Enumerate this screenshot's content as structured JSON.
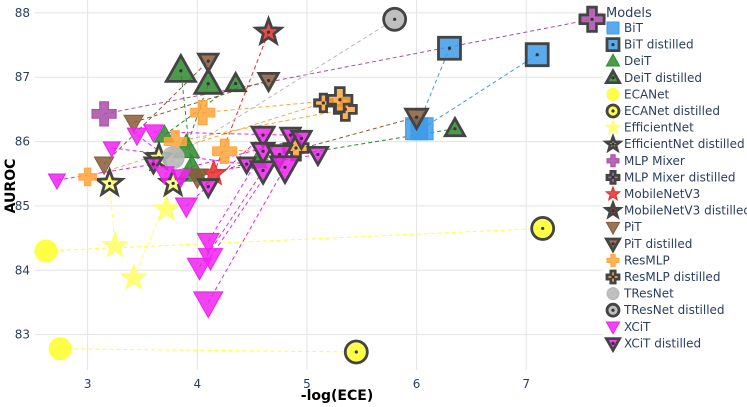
{
  "chart_data": {
    "type": "scatter",
    "xlabel": "-log(ECE)",
    "ylabel": "AUROC",
    "xlim": [
      2.52,
      7.7
    ],
    "ylim": [
      82.45,
      88.2
    ],
    "x_ticks": [
      3,
      4,
      5,
      6,
      7
    ],
    "y_ticks": [
      83,
      84,
      85,
      86,
      87,
      88
    ],
    "grid": true,
    "legend": {
      "title": "Models",
      "position": "right"
    },
    "models": [
      {
        "name": "BiT",
        "color": "#3d9be9",
        "shape": "square"
      },
      {
        "name": "DeiT",
        "color": "#2d8a2d",
        "shape": "triangle-up"
      },
      {
        "name": "ECANet",
        "color": "#ffff33",
        "shape": "circle"
      },
      {
        "name": "EfficientNet",
        "color": "#ffff66",
        "shape": "star"
      },
      {
        "name": "MLP Mixer",
        "color": "#a84ca8",
        "shape": "cross"
      },
      {
        "name": "MobileNetV3",
        "color": "#e82c2c",
        "shape": "star"
      },
      {
        "name": "PiT",
        "color": "#8a5a3a",
        "shape": "triangle-down"
      },
      {
        "name": "ResMLP",
        "color": "#ffa53a",
        "shape": "cross"
      },
      {
        "name": "TResNet",
        "color": "#b8b8b8",
        "shape": "circle"
      },
      {
        "name": "XCiT",
        "color": "#ee22ee",
        "shape": "triangle-down"
      }
    ],
    "legend_entries": [
      {
        "label": "BiT",
        "model": "BiT",
        "distilled": false
      },
      {
        "label": "BiT distilled",
        "model": "BiT",
        "distilled": true
      },
      {
        "label": "DeiT",
        "model": "DeiT",
        "distilled": false
      },
      {
        "label": "DeiT distilled",
        "model": "DeiT",
        "distilled": true
      },
      {
        "label": "ECANet",
        "model": "ECANet",
        "distilled": false
      },
      {
        "label": "ECANet distilled",
        "model": "ECANet",
        "distilled": true
      },
      {
        "label": "EfficientNet",
        "model": "EfficientNet",
        "distilled": false
      },
      {
        "label": "EfficientNet distilled",
        "model": "EfficientNet",
        "distilled": true
      },
      {
        "label": "MLP Mixer",
        "model": "MLP Mixer",
        "distilled": false
      },
      {
        "label": "MLP Mixer distilled",
        "model": "MLP Mixer",
        "distilled": true
      },
      {
        "label": "MobileNetV3",
        "model": "MobileNetV3",
        "distilled": false
      },
      {
        "label": "MobileNetV3 distilled",
        "model": "MobileNetV3",
        "distilled": true
      },
      {
        "label": "PiT",
        "model": "PiT",
        "distilled": false
      },
      {
        "label": "PiT distilled",
        "model": "PiT",
        "distilled": true
      },
      {
        "label": "ResMLP",
        "model": "ResMLP",
        "distilled": false
      },
      {
        "label": "ResMLP distilled",
        "model": "ResMLP",
        "distilled": true
      },
      {
        "label": "TResNet",
        "model": "TResNet",
        "distilled": false
      },
      {
        "label": "TResNet distilled",
        "model": "TResNet",
        "distilled": true
      },
      {
        "label": "XCiT",
        "model": "XCiT",
        "distilled": false
      },
      {
        "label": "XCiT distilled",
        "model": "XCiT",
        "distilled": true
      }
    ],
    "pairs": [
      {
        "model": "BiT",
        "size": 1,
        "plain": [
          6.0,
          86.2
        ],
        "distilled": [
          6.3,
          87.45
        ]
      },
      {
        "model": "BiT",
        "size": 1,
        "plain": [
          6.05,
          86.2
        ],
        "distilled": [
          7.1,
          87.35
        ]
      },
      {
        "model": "DeiT",
        "size": 0.8,
        "plain": [
          3.7,
          86.1
        ],
        "distilled": [
          4.35,
          86.9
        ]
      },
      {
        "model": "DeiT",
        "size": 0.8,
        "plain": [
          4.55,
          85.7
        ],
        "distilled": [
          6.35,
          86.2
        ]
      },
      {
        "model": "DeiT",
        "size": 1.2,
        "plain": [
          3.95,
          85.55
        ],
        "distilled": [
          3.85,
          87.1
        ]
      },
      {
        "model": "DeiT",
        "size": 1.1,
        "plain": [
          3.9,
          85.9
        ],
        "distilled": [
          4.1,
          86.9
        ]
      },
      {
        "model": "ECANet",
        "size": 1,
        "plain": [
          2.62,
          84.3
        ],
        "distilled": [
          7.15,
          84.65
        ]
      },
      {
        "model": "ECANet",
        "size": 1,
        "plain": [
          2.75,
          82.78
        ],
        "distilled": [
          5.45,
          82.73
        ]
      },
      {
        "model": "EfficientNet",
        "size": 1,
        "plain": [
          3.25,
          84.38
        ],
        "distilled": [
          3.2,
          85.35
        ]
      },
      {
        "model": "EfficientNet",
        "size": 1,
        "plain": [
          3.42,
          83.88
        ],
        "distilled": [
          3.78,
          85.35
        ]
      },
      {
        "model": "EfficientNet",
        "size": 1,
        "plain": [
          3.72,
          84.95
        ],
        "distilled": [
          3.65,
          85.75
        ]
      },
      {
        "model": "MLP Mixer",
        "size": 1.1,
        "plain": [
          3.15,
          86.43
        ],
        "distilled": [
          7.6,
          87.9
        ]
      },
      {
        "model": "MobileNetV3",
        "size": 1,
        "plain": [
          4.15,
          85.5
        ],
        "distilled": [
          4.65,
          87.7
        ]
      },
      {
        "model": "PiT",
        "size": 0.8,
        "plain": [
          3.42,
          86.3
        ],
        "distilled": [
          4.65,
          86.95
        ]
      },
      {
        "model": "PiT",
        "size": 0.8,
        "plain": [
          3.15,
          85.65
        ],
        "distilled": [
          4.1,
          87.25
        ]
      },
      {
        "model": "PiT",
        "size": 0.9,
        "plain": [
          4.0,
          85.45
        ],
        "distilled": [
          6.0,
          86.38
        ]
      },
      {
        "model": "ResMLP",
        "size": 0.8,
        "plain": [
          3.0,
          85.45
        ],
        "distilled": [
          5.15,
          86.6
        ]
      },
      {
        "model": "ResMLP",
        "size": 1,
        "plain": [
          3.8,
          86.0
        ],
        "distilled": [
          5.35,
          86.5
        ]
      },
      {
        "model": "ResMLP",
        "size": 1.1,
        "plain": [
          4.05,
          86.45
        ],
        "distilled": [
          5.3,
          86.65
        ]
      },
      {
        "model": "ResMLP",
        "size": 1.1,
        "plain": [
          4.25,
          85.85
        ],
        "distilled": [
          4.9,
          85.9
        ]
      },
      {
        "model": "TResNet",
        "size": 1,
        "plain": [
          3.78,
          85.75
        ],
        "distilled": [
          5.8,
          87.9
        ]
      },
      {
        "model": "XCiT",
        "size": 0.7,
        "plain": [
          2.72,
          85.4
        ],
        "distilled": [
          3.6,
          85.65
        ]
      },
      {
        "model": "XCiT",
        "size": 0.7,
        "plain": [
          3.22,
          85.9
        ],
        "distilled": [
          4.45,
          85.65
        ]
      },
      {
        "model": "XCiT",
        "size": 0.8,
        "plain": [
          3.45,
          86.1
        ],
        "distilled": [
          4.1,
          85.3
        ]
      },
      {
        "model": "XCiT",
        "size": 0.8,
        "plain": [
          3.6,
          86.15
        ],
        "distilled": [
          4.85,
          86.1
        ]
      },
      {
        "model": "XCiT",
        "size": 0.9,
        "plain": [
          3.9,
          85.0
        ],
        "distilled": [
          4.6,
          86.1
        ]
      },
      {
        "model": "XCiT",
        "size": 0.9,
        "plain": [
          4.1,
          84.45
        ],
        "distilled": [
          4.6,
          85.85
        ]
      },
      {
        "model": "XCiT",
        "size": 1,
        "plain": [
          4.02,
          84.05
        ],
        "distilled": [
          4.6,
          85.55
        ]
      },
      {
        "model": "XCiT",
        "size": 1,
        "plain": [
          4.12,
          84.2
        ],
        "distilled": [
          4.75,
          85.8
        ]
      },
      {
        "model": "XCiT",
        "size": 1.2,
        "plain": [
          4.1,
          83.5
        ],
        "distilled": [
          4.8,
          85.6
        ]
      },
      {
        "model": "XCiT",
        "size": 0.8,
        "plain": [
          3.85,
          85.45
        ],
        "distilled": [
          5.1,
          85.8
        ]
      },
      {
        "model": "XCiT",
        "size": 0.8,
        "plain": [
          3.7,
          85.5
        ],
        "distilled": [
          4.95,
          86.05
        ]
      }
    ]
  }
}
